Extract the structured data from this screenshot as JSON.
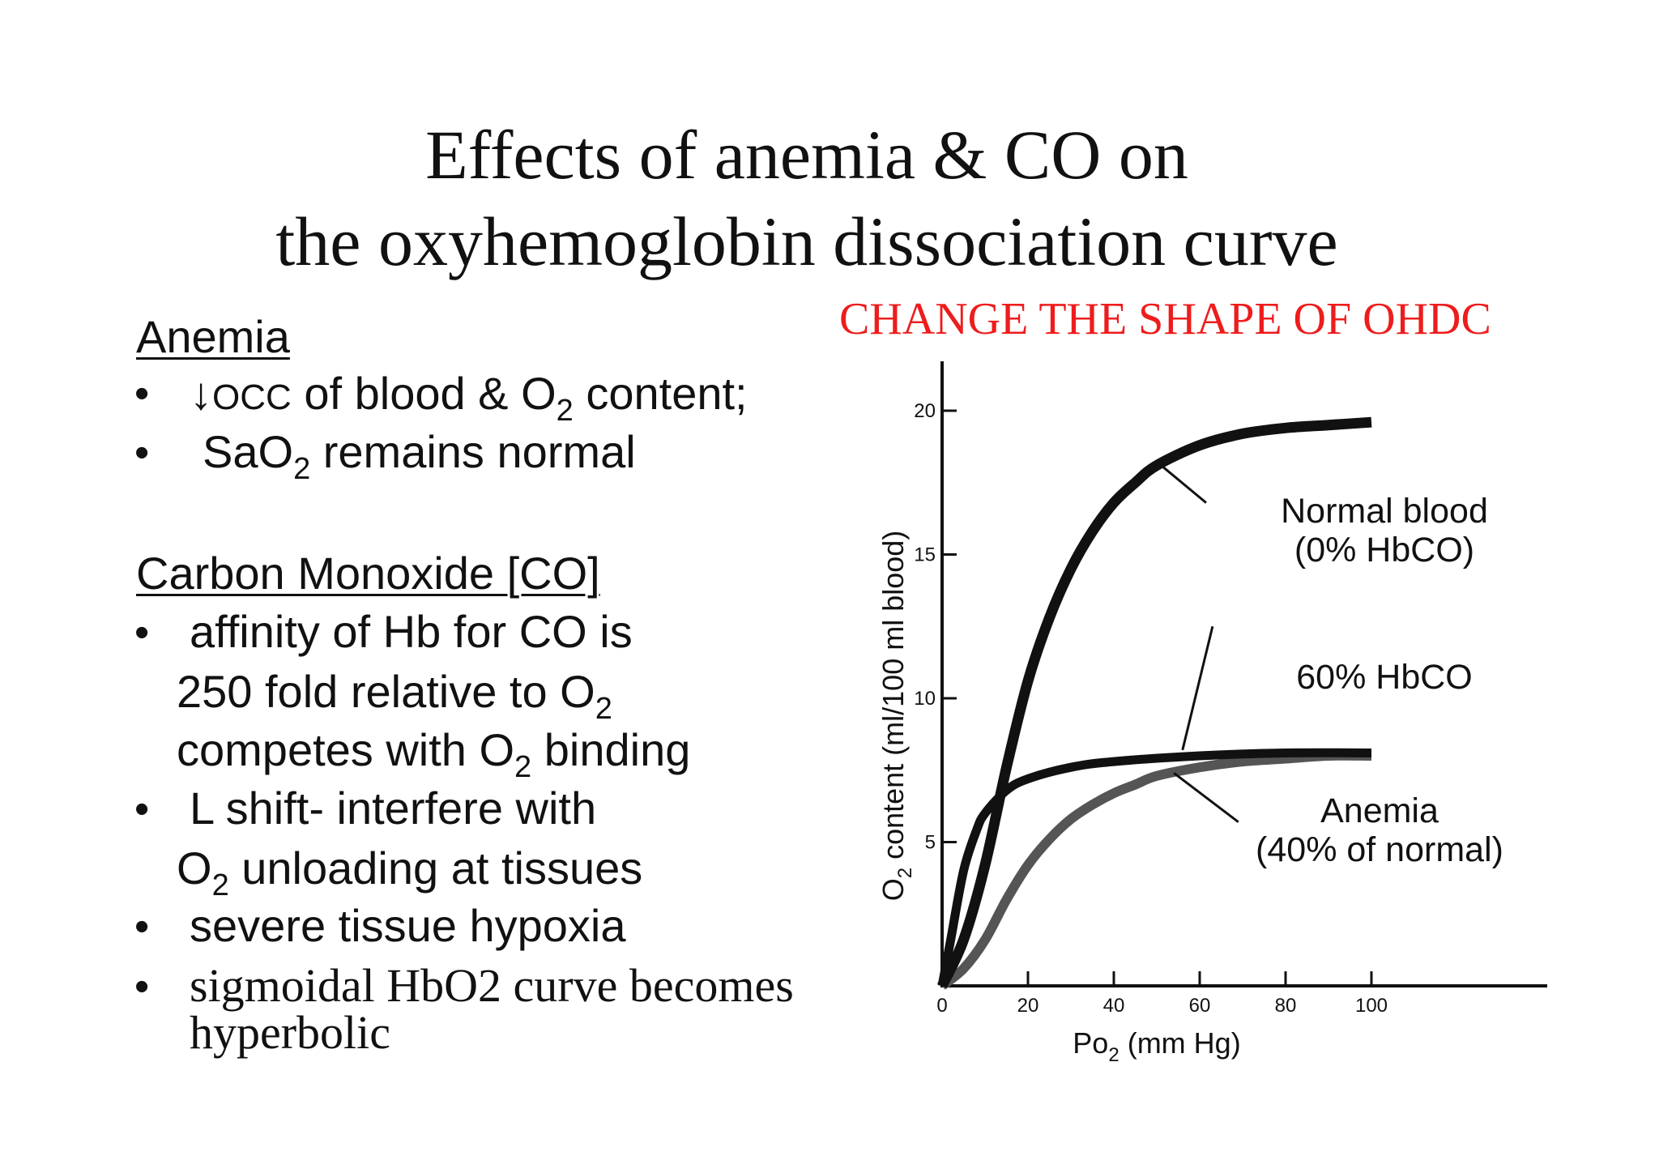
{
  "title": {
    "line1": "Effects of anemia & CO  on",
    "line2": "the oxyhemoglobin dissociation curve"
  },
  "subtitle_red": "CHANGE THE SHAPE OF OHDC",
  "left": {
    "anemia_heading": "Anemia",
    "anemia_b1_arrow": "↓",
    "anemia_b1_occ": "OCC",
    "anemia_b1_a": " of blood & O",
    "anemia_b1_sub": "2",
    "anemia_b1_b": " content;",
    "anemia_b2_a": "SaO",
    "anemia_b2_sub": "2",
    "anemia_b2_b": " remains normal",
    "co_heading": "Carbon Monoxide [CO]",
    "co_b1_l1": "affinity of Hb for CO is",
    "co_b1_l2_a": "250 fold relative to O",
    "co_b1_l2_sub": "2",
    "co_b1_l3_a": "competes with O",
    "co_b1_l3_sub": "2",
    "co_b1_l3_b": " binding",
    "co_b2_l1": "L shift- interfere with",
    "co_b2_l2_a": "O",
    "co_b2_l2_sub": "2",
    "co_b2_l2_b": " unloading at tissues",
    "co_b3": "severe tissue hypoxia",
    "co_b4_l1": "sigmoidal HbO2 curve becomes",
    "co_b4_l2": "hyperbolic",
    "bullet_char": "•"
  },
  "chart_data": {
    "type": "line",
    "xlabel": "Po2 (mm Hg)",
    "xlabel_main": "Po",
    "xlabel_sub": "2",
    "xlabel_rest": " (mm Hg)",
    "ylabel": "O2 content (ml/100 ml blood)",
    "ylabel_main": "O",
    "ylabel_sub": "2",
    "ylabel_rest": " content (ml/100 ml blood)",
    "xlim": [
      0,
      100
    ],
    "ylim": [
      0,
      20
    ],
    "xticks": [
      0,
      20,
      40,
      60,
      80,
      100
    ],
    "yticks": [
      5,
      10,
      15,
      20
    ],
    "series": [
      {
        "name": "Normal blood (0% HbCO)",
        "label_lines": [
          "Normal blood",
          "(0% HbCO)"
        ],
        "color": "#111111",
        "x": [
          0,
          5,
          10,
          15,
          20,
          25,
          30,
          35,
          40,
          45,
          50,
          60,
          70,
          80,
          90,
          100
        ],
        "y": [
          0,
          1.6,
          4.2,
          7.6,
          10.6,
          12.8,
          14.5,
          15.8,
          16.8,
          17.5,
          18.1,
          18.8,
          19.2,
          19.4,
          19.5,
          19.6
        ]
      },
      {
        "name": "60% HbCO",
        "label_lines": [
          "60% HbCO"
        ],
        "color": "#111111",
        "x": [
          0,
          2,
          5,
          8,
          10,
          15,
          20,
          30,
          40,
          60,
          80,
          100
        ],
        "y": [
          0,
          1.6,
          4.0,
          5.4,
          6.0,
          6.8,
          7.2,
          7.6,
          7.8,
          8.0,
          8.1,
          8.1
        ]
      },
      {
        "name": "Anemia (40% of normal)",
        "label_lines": [
          "Anemia",
          "(40% of normal)"
        ],
        "color": "#555555",
        "x": [
          0,
          5,
          10,
          15,
          20,
          25,
          30,
          35,
          40,
          45,
          50,
          60,
          70,
          80,
          90,
          100
        ],
        "y": [
          0,
          0.6,
          1.6,
          3.0,
          4.2,
          5.1,
          5.8,
          6.3,
          6.7,
          7.0,
          7.3,
          7.6,
          7.8,
          7.9,
          8.0,
          8.0
        ]
      }
    ]
  }
}
